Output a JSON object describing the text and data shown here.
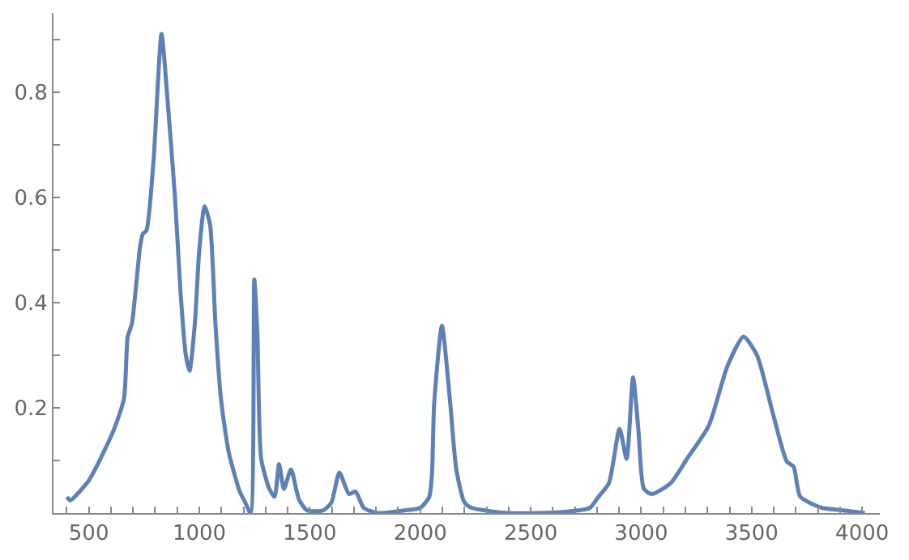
{
  "chart_data": {
    "type": "line",
    "x": [
      402,
      415,
      500,
      610,
      659,
      676,
      695,
      732,
      744,
      761,
      793,
      829,
      859,
      890,
      915,
      939,
      956,
      980,
      1000,
      1024,
      1049,
      1073,
      1098,
      1134,
      1183,
      1207,
      1232,
      1249,
      1263,
      1280,
      1317,
      1341,
      1361,
      1383,
      1415,
      1451,
      1488,
      1561,
      1598,
      1634,
      1678,
      1707,
      1744,
      1805,
      1927,
      2000,
      2040,
      2053,
      2063,
      2098,
      2136,
      2163,
      2200,
      2232,
      2402,
      2646,
      2768,
      2805,
      2854,
      2902,
      2934,
      2963,
      2988,
      3012,
      3049,
      3134,
      3207,
      3305,
      3390,
      3463,
      3524,
      3598,
      3659,
      3690,
      3720,
      3817,
      3915,
      4012
    ],
    "series": [
      {
        "color": "#5e81b5",
        "values": [
          0.031,
          0.024,
          0.062,
          0.155,
          0.217,
          0.335,
          0.36,
          0.506,
          0.53,
          0.537,
          0.67,
          0.91,
          0.77,
          0.6,
          0.42,
          0.3,
          0.27,
          0.36,
          0.5,
          0.583,
          0.547,
          0.36,
          0.217,
          0.114,
          0.041,
          0.021,
          0.0,
          0.444,
          0.34,
          0.103,
          0.046,
          0.031,
          0.093,
          0.046,
          0.083,
          0.026,
          0.005,
          0.005,
          0.02,
          0.077,
          0.036,
          0.041,
          0.01,
          0.0,
          0.005,
          0.01,
          0.03,
          0.074,
          0.207,
          0.356,
          0.207,
          0.083,
          0.02,
          0.01,
          0.0,
          0.002,
          0.01,
          0.03,
          0.057,
          0.16,
          0.103,
          0.258,
          0.155,
          0.046,
          0.036,
          0.057,
          0.103,
          0.165,
          0.279,
          0.335,
          0.3,
          0.186,
          0.098,
          0.088,
          0.031,
          0.01,
          0.005,
          0.0
        ]
      }
    ],
    "xlim": [
      340,
      4080
    ],
    "ylim": [
      0,
      0.95
    ],
    "xticks": [
      500,
      1000,
      1500,
      2000,
      2500,
      3000,
      3500,
      4000,
      {
        "value": 400,
        "label": null
      },
      {
        "value": 600,
        "label": null
      },
      {
        "value": 700,
        "label": null
      },
      {
        "value": 800,
        "label": null
      },
      {
        "value": 900,
        "label": null
      },
      {
        "value": 1100,
        "label": null
      },
      {
        "value": 1200,
        "label": null
      },
      {
        "value": 1300,
        "label": null
      },
      {
        "value": 1400,
        "label": null
      },
      {
        "value": 1600,
        "label": null
      },
      {
        "value": 1700,
        "label": null
      },
      {
        "value": 1800,
        "label": null
      },
      {
        "value": 1900,
        "label": null
      },
      {
        "value": 2100,
        "label": null
      },
      {
        "value": 2200,
        "label": null
      },
      {
        "value": 2300,
        "label": null
      },
      {
        "value": 2400,
        "label": null
      },
      {
        "value": 2600,
        "label": null
      },
      {
        "value": 2700,
        "label": null
      },
      {
        "value": 2800,
        "label": null
      },
      {
        "value": 2900,
        "label": null
      },
      {
        "value": 3100,
        "label": null
      },
      {
        "value": 3200,
        "label": null
      },
      {
        "value": 3300,
        "label": null
      },
      {
        "value": 3400,
        "label": null
      },
      {
        "value": 3600,
        "label": null
      },
      {
        "value": 3700,
        "label": null
      },
      {
        "value": 3800,
        "label": null
      },
      {
        "value": 3900,
        "label": null
      }
    ],
    "yticks": [
      0.2,
      0.4,
      0.6,
      0.8,
      {
        "value": 0.1,
        "label": null
      },
      {
        "value": 0.3,
        "label": null
      },
      {
        "value": 0.5,
        "label": null
      },
      {
        "value": 0.7,
        "label": null
      },
      {
        "value": 0.9,
        "label": null
      }
    ],
    "marker": "none",
    "line_style": "solid"
  }
}
